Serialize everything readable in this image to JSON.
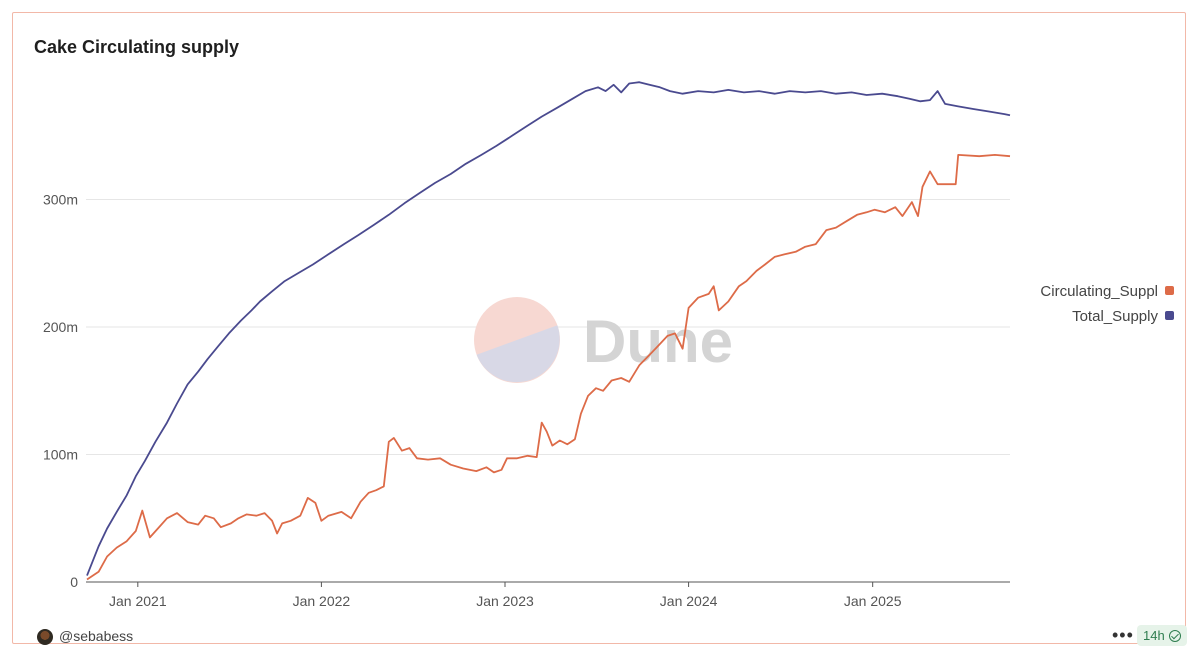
{
  "header": {
    "title": "Cake Circulating supply"
  },
  "footer": {
    "user": "@sebabess",
    "menu": "•••",
    "age": "14h"
  },
  "watermark": {
    "text": "Dune"
  },
  "colors": {
    "circulating": "#dd6b48",
    "total": "#4a4a8f",
    "grid": "#e6e6e6",
    "border": "#f2b8a8"
  },
  "chart_data": {
    "type": "line",
    "title": "Cake Circulating supply",
    "xlabel": "",
    "ylabel": "",
    "x_ticks": [
      "Jan 2021",
      "Jan 2022",
      "Jan 2023",
      "Jan 2024",
      "Jan 2025"
    ],
    "y_ticks": [
      "0",
      "100m",
      "200m",
      "300m"
    ],
    "y_tick_values": [
      0,
      100000000,
      200000000,
      300000000
    ],
    "x_range": [
      "2020-09-20",
      "2025-10-01"
    ],
    "ylim": [
      0,
      400000000
    ],
    "grid": "horizontal",
    "legend_position": "right",
    "series": [
      {
        "name": "Circulating_Suppl",
        "key": "circulating",
        "points": [
          [
            "2020-09-22",
            2000000
          ],
          [
            "2020-10-15",
            8000000
          ],
          [
            "2020-11-01",
            20000000
          ],
          [
            "2020-11-20",
            27000000
          ],
          [
            "2020-12-10",
            32000000
          ],
          [
            "2020-12-28",
            40000000
          ],
          [
            "2021-01-10",
            56000000
          ],
          [
            "2021-01-25",
            35000000
          ],
          [
            "2021-02-10",
            42000000
          ],
          [
            "2021-02-28",
            50000000
          ],
          [
            "2021-03-20",
            54000000
          ],
          [
            "2021-04-10",
            47000000
          ],
          [
            "2021-05-01",
            45000000
          ],
          [
            "2021-05-15",
            52000000
          ],
          [
            "2021-06-01",
            50000000
          ],
          [
            "2021-06-15",
            43000000
          ],
          [
            "2021-07-05",
            46000000
          ],
          [
            "2021-07-20",
            50000000
          ],
          [
            "2021-08-05",
            53000000
          ],
          [
            "2021-08-25",
            52000000
          ],
          [
            "2021-09-10",
            54000000
          ],
          [
            "2021-09-25",
            48000000
          ],
          [
            "2021-10-05",
            38000000
          ],
          [
            "2021-10-15",
            46000000
          ],
          [
            "2021-11-01",
            48000000
          ],
          [
            "2021-11-20",
            52000000
          ],
          [
            "2021-12-05",
            66000000
          ],
          [
            "2021-12-20",
            62000000
          ],
          [
            "2022-01-01",
            48000000
          ],
          [
            "2022-01-15",
            52000000
          ],
          [
            "2022-02-10",
            55000000
          ],
          [
            "2022-03-01",
            50000000
          ],
          [
            "2022-03-20",
            63000000
          ],
          [
            "2022-04-05",
            70000000
          ],
          [
            "2022-04-20",
            72000000
          ],
          [
            "2022-05-05",
            75000000
          ],
          [
            "2022-05-15",
            110000000
          ],
          [
            "2022-05-25",
            113000000
          ],
          [
            "2022-06-10",
            103000000
          ],
          [
            "2022-06-25",
            105000000
          ],
          [
            "2022-07-10",
            97000000
          ],
          [
            "2022-08-01",
            96000000
          ],
          [
            "2022-08-25",
            97000000
          ],
          [
            "2022-09-15",
            92000000
          ],
          [
            "2022-10-10",
            89000000
          ],
          [
            "2022-11-05",
            87000000
          ],
          [
            "2022-11-25",
            90000000
          ],
          [
            "2022-12-10",
            86000000
          ],
          [
            "2022-12-25",
            88000000
          ],
          [
            "2023-01-05",
            97000000
          ],
          [
            "2023-01-25",
            97000000
          ],
          [
            "2023-02-15",
            99000000
          ],
          [
            "2023-03-05",
            98000000
          ],
          [
            "2023-03-15",
            125000000
          ],
          [
            "2023-03-25",
            118000000
          ],
          [
            "2023-04-05",
            107000000
          ],
          [
            "2023-04-20",
            111000000
          ],
          [
            "2023-05-05",
            108000000
          ],
          [
            "2023-05-20",
            112000000
          ],
          [
            "2023-06-01",
            132000000
          ],
          [
            "2023-06-15",
            146000000
          ],
          [
            "2023-07-01",
            152000000
          ],
          [
            "2023-07-15",
            150000000
          ],
          [
            "2023-08-01",
            158000000
          ],
          [
            "2023-08-20",
            160000000
          ],
          [
            "2023-09-05",
            157000000
          ],
          [
            "2023-09-25",
            170000000
          ],
          [
            "2023-10-15",
            178000000
          ],
          [
            "2023-11-01",
            185000000
          ],
          [
            "2023-11-20",
            193000000
          ],
          [
            "2023-12-05",
            195000000
          ],
          [
            "2023-12-20",
            183000000
          ],
          [
            "2024-01-01",
            215000000
          ],
          [
            "2024-01-20",
            223000000
          ],
          [
            "2024-02-10",
            226000000
          ],
          [
            "2024-02-20",
            232000000
          ],
          [
            "2024-03-01",
            213000000
          ],
          [
            "2024-03-20",
            220000000
          ],
          [
            "2024-04-10",
            232000000
          ],
          [
            "2024-04-25",
            236000000
          ],
          [
            "2024-05-15",
            244000000
          ],
          [
            "2024-06-01",
            249000000
          ],
          [
            "2024-06-20",
            255000000
          ],
          [
            "2024-07-10",
            257000000
          ],
          [
            "2024-08-01",
            259000000
          ],
          [
            "2024-08-20",
            263000000
          ],
          [
            "2024-09-10",
            265000000
          ],
          [
            "2024-10-01",
            276000000
          ],
          [
            "2024-10-20",
            278000000
          ],
          [
            "2024-11-10",
            283000000
          ],
          [
            "2024-12-01",
            288000000
          ],
          [
            "2024-12-20",
            290000000
          ],
          [
            "2025-01-05",
            292000000
          ],
          [
            "2025-01-25",
            290000000
          ],
          [
            "2025-02-15",
            294000000
          ],
          [
            "2025-03-01",
            287000000
          ],
          [
            "2025-03-20",
            298000000
          ],
          [
            "2025-04-01",
            287000000
          ],
          [
            "2025-04-10",
            310000000
          ],
          [
            "2025-04-25",
            322000000
          ],
          [
            "2025-05-10",
            312000000
          ],
          [
            "2025-06-15",
            312000000
          ],
          [
            "2025-06-20",
            335000000
          ],
          [
            "2025-08-01",
            334000000
          ],
          [
            "2025-09-01",
            335000000
          ],
          [
            "2025-10-01",
            334000000
          ]
        ]
      },
      {
        "name": "Total_Supply",
        "key": "total",
        "points": [
          [
            "2020-09-22",
            5000000
          ],
          [
            "2020-10-15",
            28000000
          ],
          [
            "2020-11-01",
            42000000
          ],
          [
            "2020-11-20",
            55000000
          ],
          [
            "2020-12-10",
            68000000
          ],
          [
            "2020-12-28",
            83000000
          ],
          [
            "2021-01-15",
            95000000
          ],
          [
            "2021-02-05",
            110000000
          ],
          [
            "2021-02-28",
            125000000
          ],
          [
            "2021-03-20",
            140000000
          ],
          [
            "2021-04-10",
            155000000
          ],
          [
            "2021-05-01",
            165000000
          ],
          [
            "2021-05-20",
            175000000
          ],
          [
            "2021-06-10",
            185000000
          ],
          [
            "2021-07-01",
            195000000
          ],
          [
            "2021-07-25",
            205000000
          ],
          [
            "2021-08-15",
            213000000
          ],
          [
            "2021-09-01",
            220000000
          ],
          [
            "2021-09-25",
            228000000
          ],
          [
            "2021-10-20",
            236000000
          ],
          [
            "2021-11-15",
            242000000
          ],
          [
            "2021-12-15",
            249000000
          ],
          [
            "2022-01-15",
            257000000
          ],
          [
            "2022-02-15",
            265000000
          ],
          [
            "2022-03-15",
            272000000
          ],
          [
            "2022-04-15",
            280000000
          ],
          [
            "2022-05-15",
            288000000
          ],
          [
            "2022-06-15",
            297000000
          ],
          [
            "2022-07-15",
            305000000
          ],
          [
            "2022-08-15",
            313000000
          ],
          [
            "2022-09-15",
            320000000
          ],
          [
            "2022-10-15",
            328000000
          ],
          [
            "2022-11-15",
            335000000
          ],
          [
            "2022-12-15",
            342000000
          ],
          [
            "2023-01-15",
            350000000
          ],
          [
            "2023-02-15",
            358000000
          ],
          [
            "2023-03-15",
            365000000
          ],
          [
            "2023-04-15",
            372000000
          ],
          [
            "2023-05-15",
            379000000
          ],
          [
            "2023-06-10",
            385000000
          ],
          [
            "2023-07-05",
            388000000
          ],
          [
            "2023-07-20",
            385000000
          ],
          [
            "2023-08-05",
            390000000
          ],
          [
            "2023-08-20",
            384000000
          ],
          [
            "2023-09-05",
            391000000
          ],
          [
            "2023-09-25",
            392000000
          ],
          [
            "2023-10-15",
            390000000
          ],
          [
            "2023-11-05",
            388000000
          ],
          [
            "2023-11-25",
            385000000
          ],
          [
            "2023-12-20",
            383000000
          ],
          [
            "2024-01-20",
            385000000
          ],
          [
            "2024-02-20",
            384000000
          ],
          [
            "2024-03-20",
            386000000
          ],
          [
            "2024-04-20",
            384000000
          ],
          [
            "2024-05-20",
            385000000
          ],
          [
            "2024-06-20",
            383000000
          ],
          [
            "2024-07-20",
            385000000
          ],
          [
            "2024-08-20",
            384000000
          ],
          [
            "2024-09-20",
            385000000
          ],
          [
            "2024-10-20",
            383000000
          ],
          [
            "2024-11-20",
            384000000
          ],
          [
            "2024-12-20",
            382000000
          ],
          [
            "2025-01-20",
            383000000
          ],
          [
            "2025-02-20",
            381000000
          ],
          [
            "2025-03-15",
            379000000
          ],
          [
            "2025-04-05",
            377000000
          ],
          [
            "2025-04-25",
            378000000
          ],
          [
            "2025-05-10",
            385000000
          ],
          [
            "2025-05-25",
            375000000
          ],
          [
            "2025-06-20",
            373000000
          ],
          [
            "2025-07-20",
            371000000
          ],
          [
            "2025-08-20",
            369000000
          ],
          [
            "2025-09-20",
            367000000
          ],
          [
            "2025-10-01",
            366000000
          ]
        ]
      }
    ]
  }
}
